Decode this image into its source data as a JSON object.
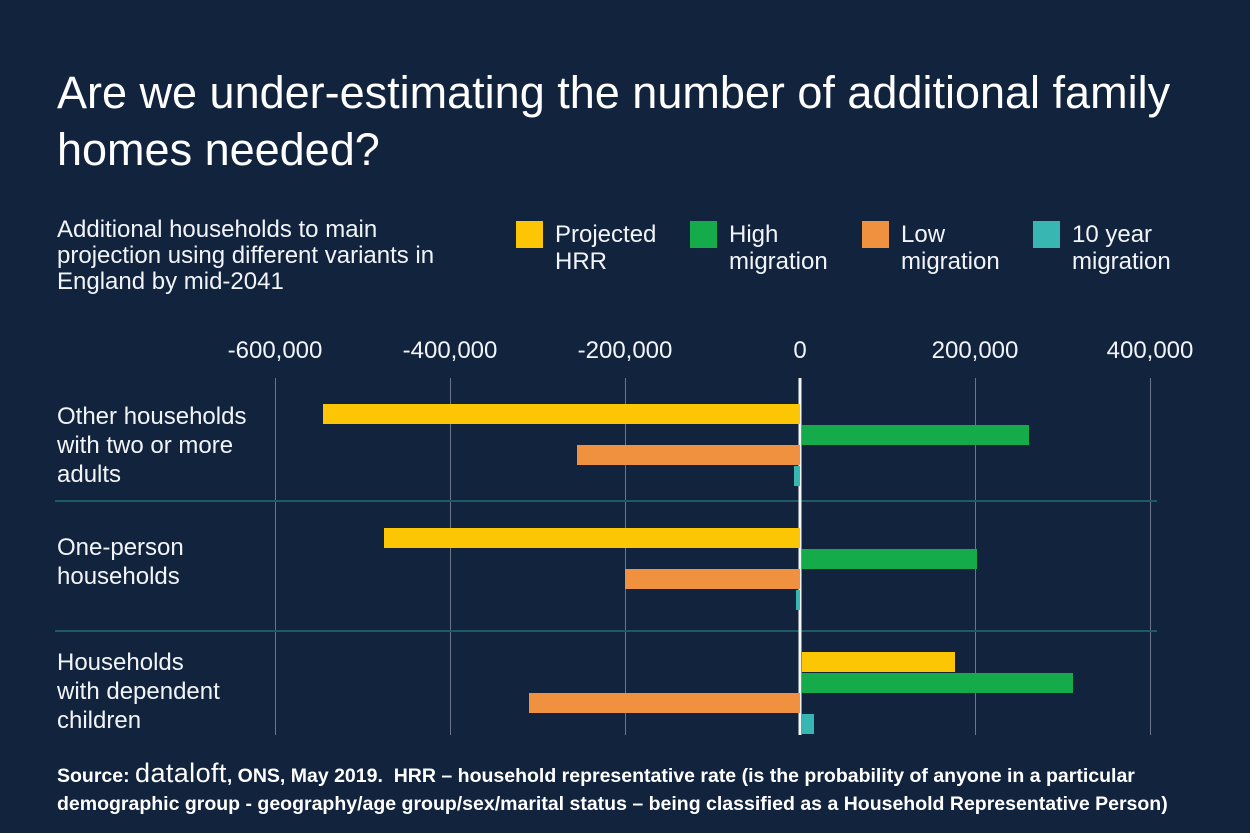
{
  "header": {
    "title": "Are we under-estimating the number of additional family homes needed?",
    "subtitle": "Additional households to main projection using different variants in England by mid-2041"
  },
  "chart_data": {
    "type": "bar",
    "orientation": "horizontal",
    "title": "Are we under-estimating the number of additional family homes needed?",
    "subtitle": "Additional households to main projection using different variants in England by mid-2041",
    "categories": [
      "Other households with two or more adults",
      "One-person households",
      "Households with dependent children"
    ],
    "categories_wrapped": [
      "Other households\nwith two or more\nadults",
      "One-person\nhouseholds",
      "Households\nwith dependent\nchildren"
    ],
    "series": [
      {
        "name": "Projected HRR",
        "color": "#FCC605",
        "values": [
          -545000,
          -475000,
          175000
        ]
      },
      {
        "name": "High migration",
        "color": "#15AB4A",
        "values": [
          260000,
          200000,
          310000
        ]
      },
      {
        "name": "Low migration",
        "color": "#F0913F",
        "values": [
          -255000,
          -200000,
          -310000
        ]
      },
      {
        "name": "10 year migration",
        "color": "#37B6B2",
        "values": [
          -7000,
          -5000,
          14000
        ]
      }
    ],
    "x_ticks": [
      -600000,
      -400000,
      -200000,
      0,
      200000,
      400000
    ],
    "x_tick_labels": [
      "-600,000",
      "-400,000",
      "-200,000",
      "0",
      "200,000",
      "400,000"
    ],
    "xlim": [
      -650000,
      450000
    ],
    "grid": "vertical gridlines at each tick, bright white zero line",
    "legend_position": "top"
  },
  "source": {
    "prefix": "Source: ",
    "brand": "dataloft",
    "rest": ", ONS, May 2019.  HRR – household representative rate (is the probability of anyone in a particular demographic group - geography/age group/sex/marital status – being classified as a Household Representative Person)"
  },
  "colors": {
    "background": "#12233E",
    "text": "#FFFFFF",
    "gridline": "rgba(212,220,232,0.45)",
    "zero_line": "#F4F6F8",
    "row_separator": "#1E5A64"
  }
}
